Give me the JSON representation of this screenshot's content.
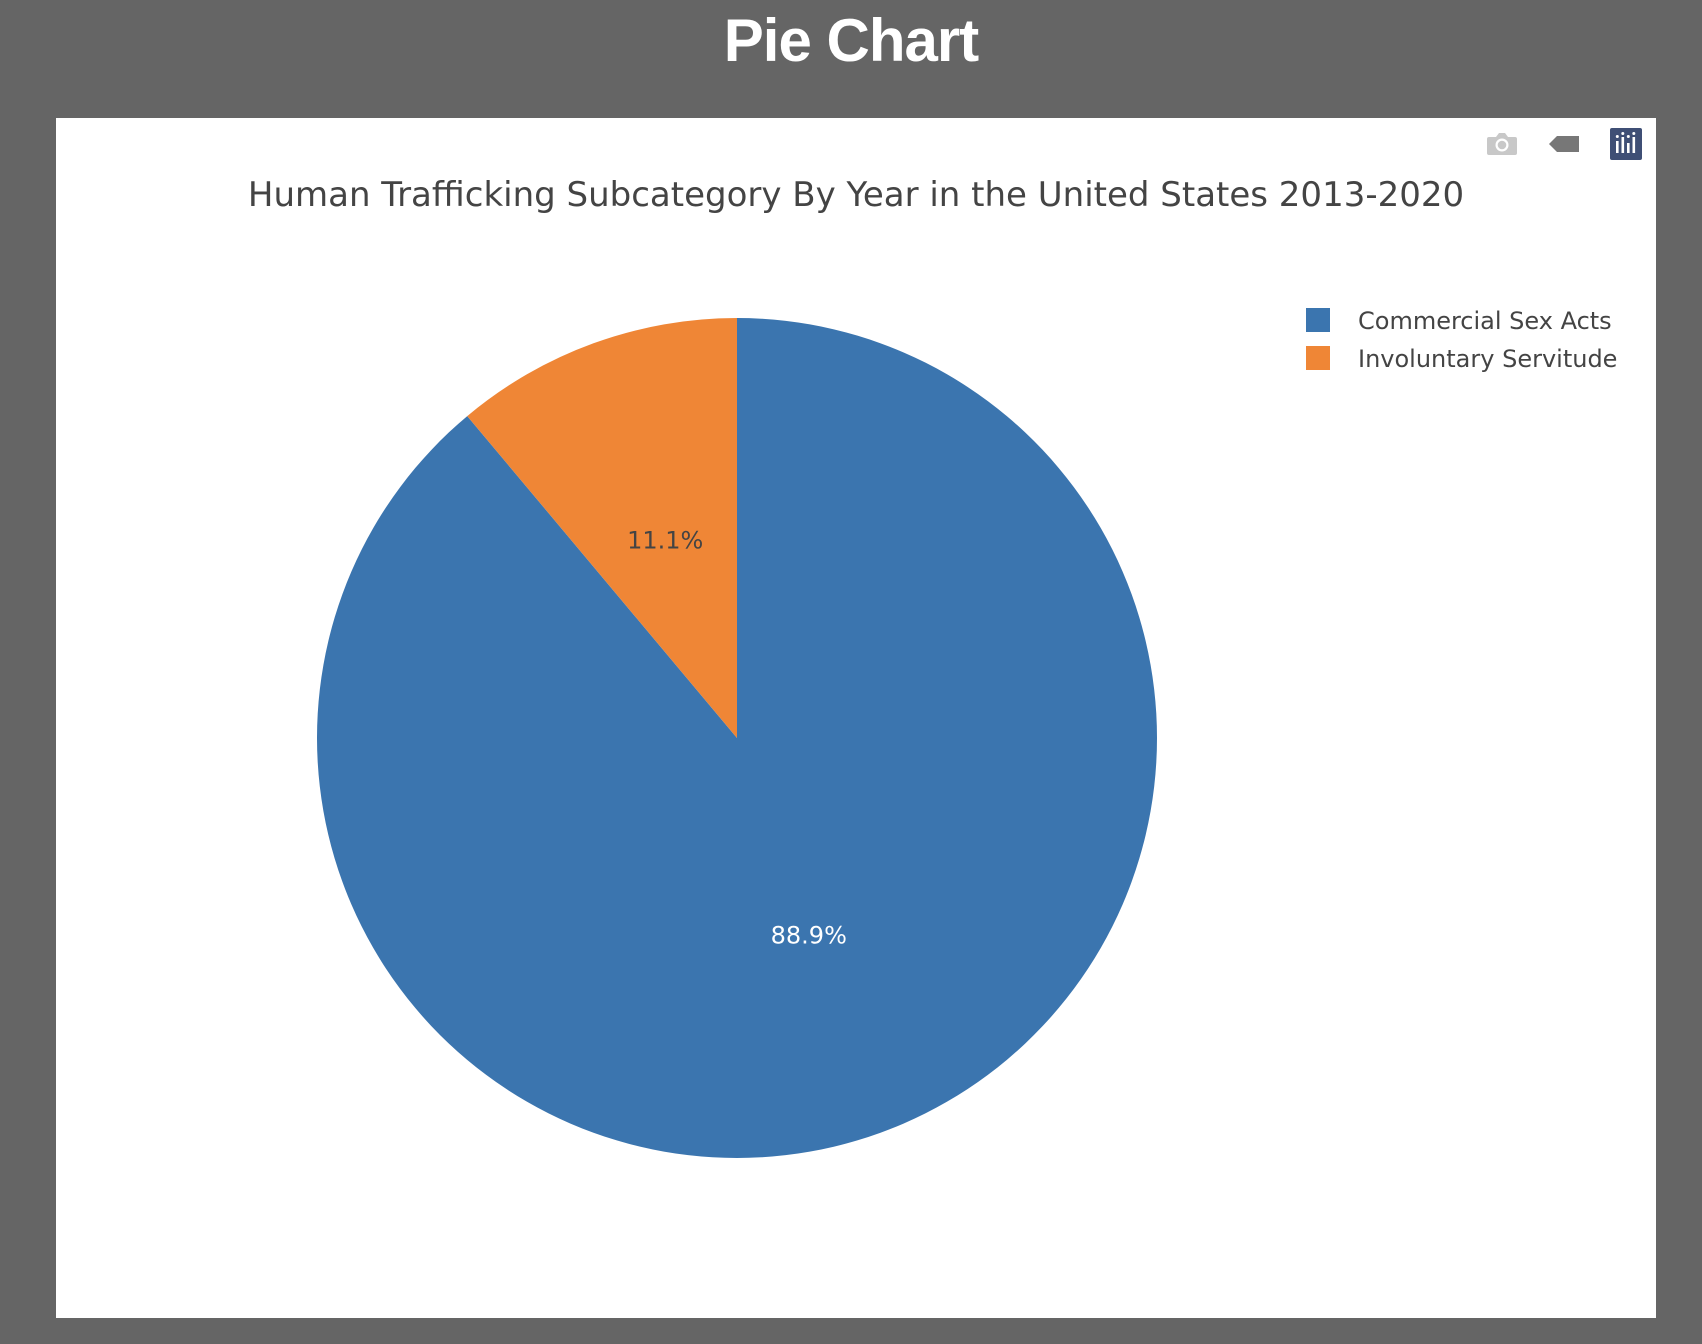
{
  "page": {
    "title": "Pie Chart"
  },
  "modebar": {
    "icons": [
      "camera-icon",
      "tag-icon",
      "plotly-logo-icon"
    ]
  },
  "colors": {
    "page_background": "#656565",
    "card_background": "#ffffff",
    "text": "#444444"
  },
  "chart_data": {
    "type": "pie",
    "title": "Human Trafficking Subcategory By Year in the United States 2013-2020",
    "categories": [
      "Commercial Sex Acts",
      "Involuntary Servitude"
    ],
    "values": [
      88.9,
      11.1
    ],
    "labels": [
      "88.9%",
      "11.1%"
    ],
    "colors": [
      "#3b75af",
      "#ef8636"
    ],
    "label_colors": [
      "#ffffff",
      "#444444"
    ],
    "legend": {
      "position": "top-right",
      "entries": [
        "Commercial Sex Acts",
        "Involuntary Servitude"
      ]
    },
    "direction": "clockwise",
    "start": "top"
  }
}
